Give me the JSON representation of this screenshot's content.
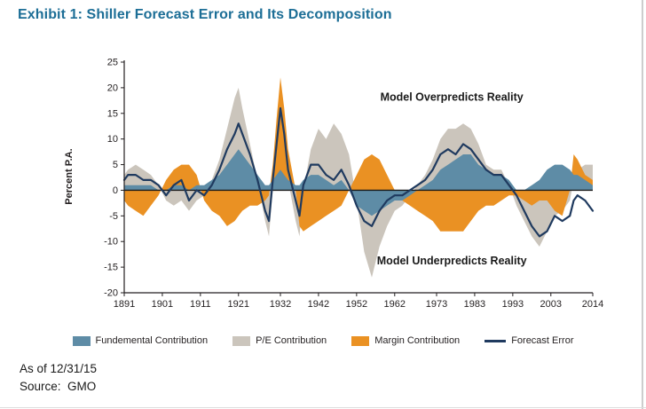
{
  "title": "Exhibit 1: Shiller Forecast Error and Its Decomposition",
  "footer": {
    "as_of": "As of 12/31/15",
    "source": "Source:  GMO"
  },
  "colors": {
    "title": "#1C6E96",
    "fundamental": "#5E8CA6",
    "pe": "#CBC5BC",
    "margin": "#EA9123",
    "error": "#1F3A5F",
    "axis": "#231F20",
    "text": "#231F20"
  },
  "chart_data": {
    "type": "area+line",
    "title": "Exhibit 1: Shiller Forecast Error and Its Decomposition",
    "xlabel": "",
    "ylabel": "Percent P.A.",
    "ylim": [
      -20,
      25
    ],
    "ytick_step": 5,
    "grid": false,
    "legend_position": "bottom",
    "xticks": [
      1891,
      1901,
      1911,
      1921,
      1932,
      1942,
      1952,
      1962,
      1973,
      1983,
      1993,
      2003,
      2014
    ],
    "x": [
      1891,
      1892,
      1894,
      1896,
      1898,
      1900,
      1902,
      1904,
      1906,
      1908,
      1910,
      1912,
      1914,
      1916,
      1918,
      1920,
      1921,
      1922,
      1924,
      1926,
      1928,
      1929,
      1930,
      1931,
      1932,
      1933,
      1934,
      1936,
      1937,
      1938,
      1940,
      1942,
      1944,
      1946,
      1948,
      1950,
      1952,
      1954,
      1956,
      1958,
      1960,
      1962,
      1964,
      1966,
      1968,
      1970,
      1972,
      1974,
      1976,
      1978,
      1980,
      1982,
      1984,
      1986,
      1988,
      1990,
      1992,
      1994,
      1996,
      1998,
      2000,
      2002,
      2004,
      2006,
      2008,
      2009,
      2010,
      2012,
      2014
    ],
    "series": [
      {
        "name": "Fundemental Contribution",
        "type": "area",
        "color_key": "fundamental",
        "values": [
          1,
          1,
          1,
          1,
          1,
          0,
          0,
          1,
          1,
          0,
          1,
          1,
          2,
          3,
          5,
          7,
          8,
          7,
          5,
          3,
          1,
          1,
          2,
          3,
          4,
          3,
          2,
          1,
          1,
          2,
          3,
          3,
          2,
          1,
          2,
          0,
          -3,
          -4,
          -5,
          -4,
          -3,
          -2,
          -2,
          -1,
          0,
          1,
          2,
          4,
          5,
          6,
          7,
          7,
          5,
          4,
          3,
          3,
          2,
          0,
          0,
          1,
          2,
          4,
          5,
          5,
          4,
          3,
          3,
          2,
          1
        ]
      },
      {
        "name": "P/E Contribution",
        "type": "area",
        "color_key": "pe",
        "values": [
          3,
          4,
          5,
          4,
          3,
          1,
          -2,
          -3,
          -2,
          -4,
          -2,
          -1,
          2,
          6,
          12,
          18,
          20,
          16,
          9,
          2,
          -6,
          -9,
          0,
          10,
          17,
          10,
          2,
          -6,
          -9,
          0,
          8,
          12,
          10,
          13,
          11,
          7,
          -2,
          -12,
          -17,
          -11,
          -7,
          -4,
          -3,
          -1,
          1,
          3,
          6,
          10,
          12,
          12,
          13,
          12,
          9,
          5,
          4,
          4,
          1,
          -3,
          -6,
          -9,
          -11,
          -8,
          -5,
          -4,
          -2,
          2,
          4,
          5,
          5
        ]
      },
      {
        "name": "Margin Contribution",
        "type": "area",
        "color_key": "margin",
        "values": [
          -2,
          -3,
          -4,
          -5,
          -3,
          -1,
          2,
          4,
          5,
          5,
          3,
          -2,
          -4,
          -5,
          -7,
          -6,
          -5,
          -4,
          -3,
          -3,
          -2,
          -1,
          5,
          14,
          22,
          16,
          8,
          0,
          -7,
          -8,
          -7,
          -6,
          -5,
          -4,
          -3,
          0,
          3,
          6,
          7,
          6,
          3,
          0,
          -2,
          -3,
          -4,
          -5,
          -6,
          -8,
          -8,
          -8,
          -8,
          -6,
          -4,
          -3,
          -3,
          -2,
          -1,
          -1,
          -2,
          -3,
          -2,
          -2,
          -4,
          -5,
          0,
          7,
          6,
          3,
          2
        ]
      },
      {
        "name": "Forecast Error",
        "type": "line",
        "color_key": "error",
        "values": [
          2,
          3,
          3,
          2,
          2,
          1,
          -1,
          1,
          2,
          -2,
          0,
          -1,
          1,
          4,
          8,
          11,
          13,
          11,
          7,
          2,
          -4,
          -6,
          2,
          9,
          16,
          11,
          4,
          -2,
          -5,
          1,
          5,
          5,
          3,
          2,
          4,
          1,
          -3,
          -6,
          -7,
          -4,
          -2,
          -1,
          -1,
          0,
          1,
          2,
          4,
          7,
          8,
          7,
          9,
          8,
          6,
          4,
          3,
          3,
          1,
          -1,
          -4,
          -7,
          -9,
          -8,
          -5,
          -6,
          -5,
          -2,
          -1,
          -2,
          -4
        ]
      }
    ],
    "draw_order": [
      1,
      2,
      0,
      3
    ],
    "annotations": [
      {
        "text": "Model Overpredicts Reality",
        "x": 1977,
        "y": 17.5
      },
      {
        "text": "Model Underpredicts Reality",
        "x": 1977,
        "y": -14.5
      }
    ]
  }
}
